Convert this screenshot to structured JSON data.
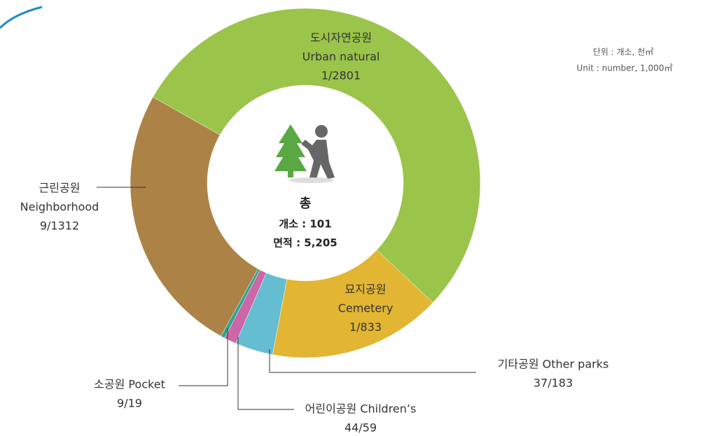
{
  "chart_data": {
    "type": "donut",
    "categories": [
      [
        "도시자연공원",
        "Urban natural"
      ],
      [
        "묘지공원",
        "Cemetery"
      ],
      [
        "기타공원 Other parks"
      ],
      [
        "어린이공원 Children’s"
      ],
      [
        "소공원 Pocket"
      ],
      [
        "근린공원",
        "Neighborhood"
      ]
    ],
    "values": [
      2801,
      833,
      183,
      59,
      19,
      1312
    ],
    "value_labels": [
      "1/2801",
      "1/833",
      "37/183",
      "44/59",
      "9/19",
      "9/1312"
    ],
    "colors": [
      "#9bc44a",
      "#e2b533",
      "#64bdd0",
      "#cc67a8",
      "#2ba68e",
      "#ad8246"
    ],
    "center": {
      "title": "총",
      "count": "개소 : 101",
      "area": "면적 : 5,205"
    },
    "unit": [
      "단위 : 개소, 천㎡",
      "Unit : number, 1,000㎡"
    ]
  }
}
